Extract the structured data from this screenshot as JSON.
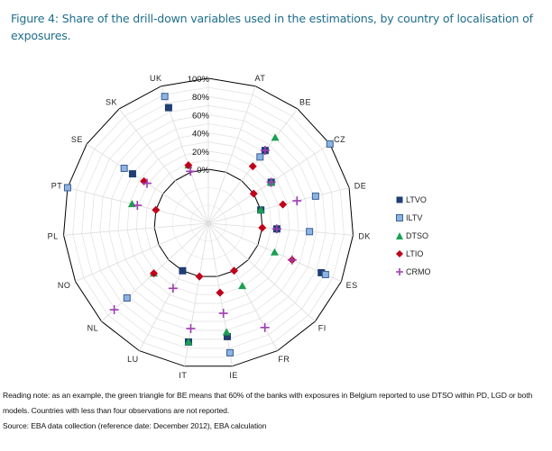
{
  "title": "Figure 4: Share of the drill-down variables used in the estimations, by country of localisation of exposures.",
  "chart_data": {
    "type": "radar",
    "title": "Share of the drill-down variables used in the estimations, by country of localisation of exposures",
    "categories": [
      "",
      "AT",
      "BE",
      "CZ",
      "DE",
      "DK",
      "ES",
      "FI",
      "FR",
      "IE",
      "IT",
      "LU",
      "NL",
      "NO",
      "PL",
      "PT",
      "SE",
      "SK",
      "UK"
    ],
    "radial_ticks": [
      "0%",
      "20%",
      "40%",
      "60%",
      "80%",
      "100%"
    ],
    "rlim": [
      0,
      100
    ],
    "grid": true,
    "legend_position": "right",
    "series": [
      {
        "name": "LTVO",
        "marker": "square",
        "color": "#1f3f73",
        "values": [
          null,
          null,
          42,
          23,
          0,
          16,
          76,
          null,
          null,
          67,
          73,
          0,
          null,
          null,
          null,
          null,
          40,
          null,
          75
        ]
      },
      {
        "name": "ILTV",
        "marker": "square",
        "color": "#8db3e2",
        "values": [
          null,
          null,
          33,
          100,
          62,
          52,
          81,
          null,
          null,
          85,
          null,
          null,
          62,
          null,
          null,
          100,
          51,
          null,
          88
        ]
      },
      {
        "name": "DTSO",
        "marker": "triangle",
        "color": "#1aa050",
        "values": [
          null,
          null,
          60,
          23,
          0,
          null,
          20,
          null,
          19,
          62,
          73,
          null,
          22,
          null,
          null,
          27,
          null,
          null,
          8
        ]
      },
      {
        "name": "LTIO",
        "marker": "diamond",
        "color": "#c0001a",
        "values": [
          null,
          null,
          20,
          0,
          25,
          0,
          41,
          null,
          0,
          18,
          0,
          null,
          22,
          null,
          null,
          0,
          25,
          null,
          8
        ]
      },
      {
        "name": "CRMO",
        "marker": "plus",
        "color": "#a03cb4",
        "values": [
          null,
          null,
          42,
          23,
          41,
          16,
          41,
          null,
          71,
          41,
          58,
          22,
          81,
          null,
          null,
          21,
          21,
          null,
          1
        ]
      }
    ]
  },
  "legend": [
    {
      "label": "LTVO"
    },
    {
      "label": "ILTV"
    },
    {
      "label": "DTSO"
    },
    {
      "label": "LTIO"
    },
    {
      "label": "CRMO"
    }
  ],
  "footer": {
    "reading_note": "Reading note: as an example, the green triangle for BE means that 60% of the banks with exposures in Belgium reported to use DTSO  within PD, LGD or both models. Countries with less than four observations are not reported.",
    "source": "Source: EBA data collection (reference date: December 2012), EBA calculation"
  }
}
